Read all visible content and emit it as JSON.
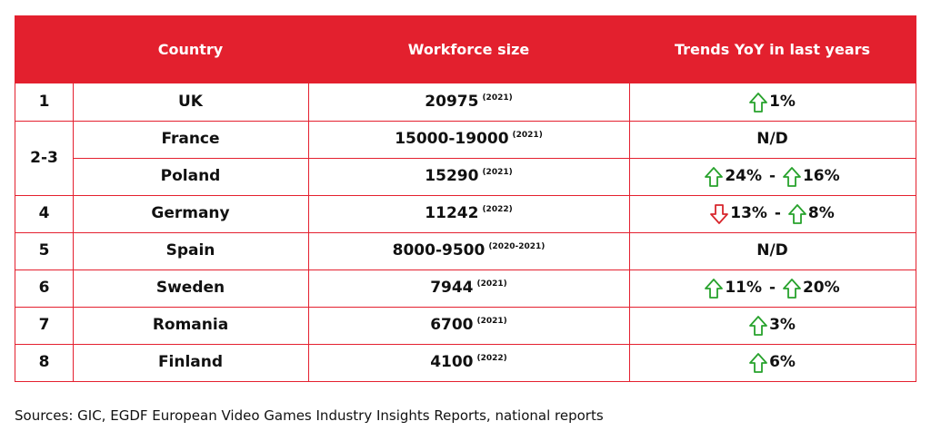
{
  "header": {
    "rank": "",
    "country": "Country",
    "workforce": "Workforce size",
    "trends": "Trends YoY in last years"
  },
  "rows": [
    {
      "rank": "1",
      "country": "UK",
      "size": "20975",
      "year": "(2021)",
      "trends": [
        {
          "dir": "up",
          "pct": "1%"
        }
      ]
    },
    {
      "rank": "2-3",
      "country": "France",
      "size": "15000-19000",
      "year": "(2021)",
      "trends": [],
      "trend_text": "N/D"
    },
    {
      "rank": "",
      "country": "Poland",
      "size": "15290",
      "year": "(2021)",
      "trends": [
        {
          "dir": "up",
          "pct": "24%"
        },
        {
          "dir": "up",
          "pct": "16%"
        }
      ]
    },
    {
      "rank": "4",
      "country": "Germany",
      "size": "11242",
      "year": "(2022)",
      "trends": [
        {
          "dir": "down",
          "pct": "13%"
        },
        {
          "dir": "up",
          "pct": "8%"
        }
      ]
    },
    {
      "rank": "5",
      "country": "Spain",
      "size": "8000-9500",
      "year": "(2020-2021)",
      "trends": [],
      "trend_text": "N/D"
    },
    {
      "rank": "6",
      "country": "Sweden",
      "size": "7944",
      "year": "(2021)",
      "trends": [
        {
          "dir": "up",
          "pct": "11%"
        },
        {
          "dir": "up",
          "pct": "20%"
        }
      ]
    },
    {
      "rank": "7",
      "country": "Romania",
      "size": "6700",
      "year": "(2021)",
      "trends": [
        {
          "dir": "up",
          "pct": "3%"
        }
      ]
    },
    {
      "rank": "8",
      "country": "Finland",
      "size": "4100",
      "year": "(2022)",
      "trends": [
        {
          "dir": "up",
          "pct": "6%"
        }
      ]
    }
  ],
  "separator": " - ",
  "colors": {
    "header": "#e3202e",
    "up": "#27a22c",
    "down": "#d8262c"
  },
  "sources": "Sources: GIC, EGDF European Video Games Industry Insights Reports, national reports"
}
